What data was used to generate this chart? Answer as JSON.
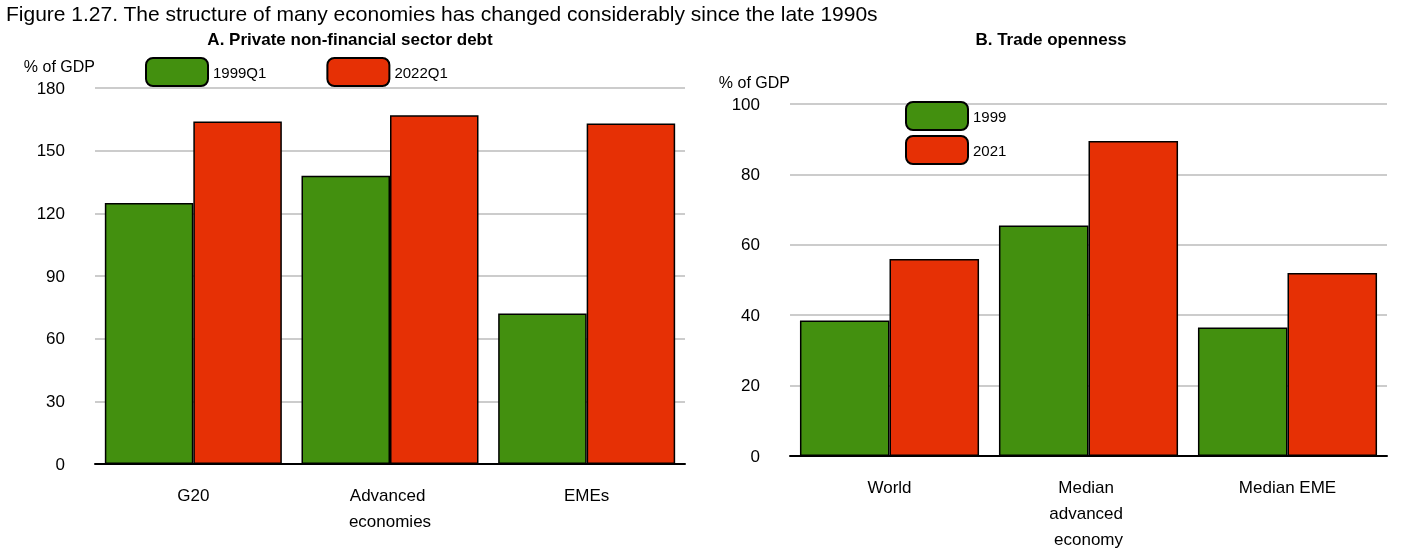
{
  "chart_data": [
    {
      "type": "bar",
      "title": "A. Private non-financial sector debt",
      "annotations": [
        "Figure 1.27. The structure of many economies has changed considerably since the late 1990s"
      ],
      "ylabel": "% of GDP",
      "categories": [
        "G20",
        "Advanced economies",
        "EMEs"
      ],
      "series": [
        {
          "name": "1999Q1",
          "color": "#43900f",
          "values": [
            125,
            138,
            72
          ]
        },
        {
          "name": "2022Q1",
          "color": "#e63005",
          "values": [
            164,
            167,
            163
          ]
        }
      ],
      "ylim": [
        0,
        180
      ],
      "yticks": [
        0,
        30,
        60,
        90,
        120,
        150,
        180
      ],
      "grid": "y",
      "legend": "top"
    },
    {
      "type": "bar",
      "title": "B. Trade openness",
      "ylabel": "% of GDP",
      "categories": [
        "World",
        "Median advanced economy",
        "Median EME"
      ],
      "series": [
        {
          "name": "1999",
          "color": "#43900f",
          "values": [
            38.5,
            65.5,
            36.5
          ]
        },
        {
          "name": "2021",
          "color": "#e63005",
          "values": [
            56,
            89.5,
            52
          ]
        }
      ],
      "ylim": [
        0,
        100
      ],
      "yticks": [
        0,
        20,
        40,
        60,
        80,
        100
      ],
      "grid": "y",
      "legend": "top left"
    }
  ]
}
